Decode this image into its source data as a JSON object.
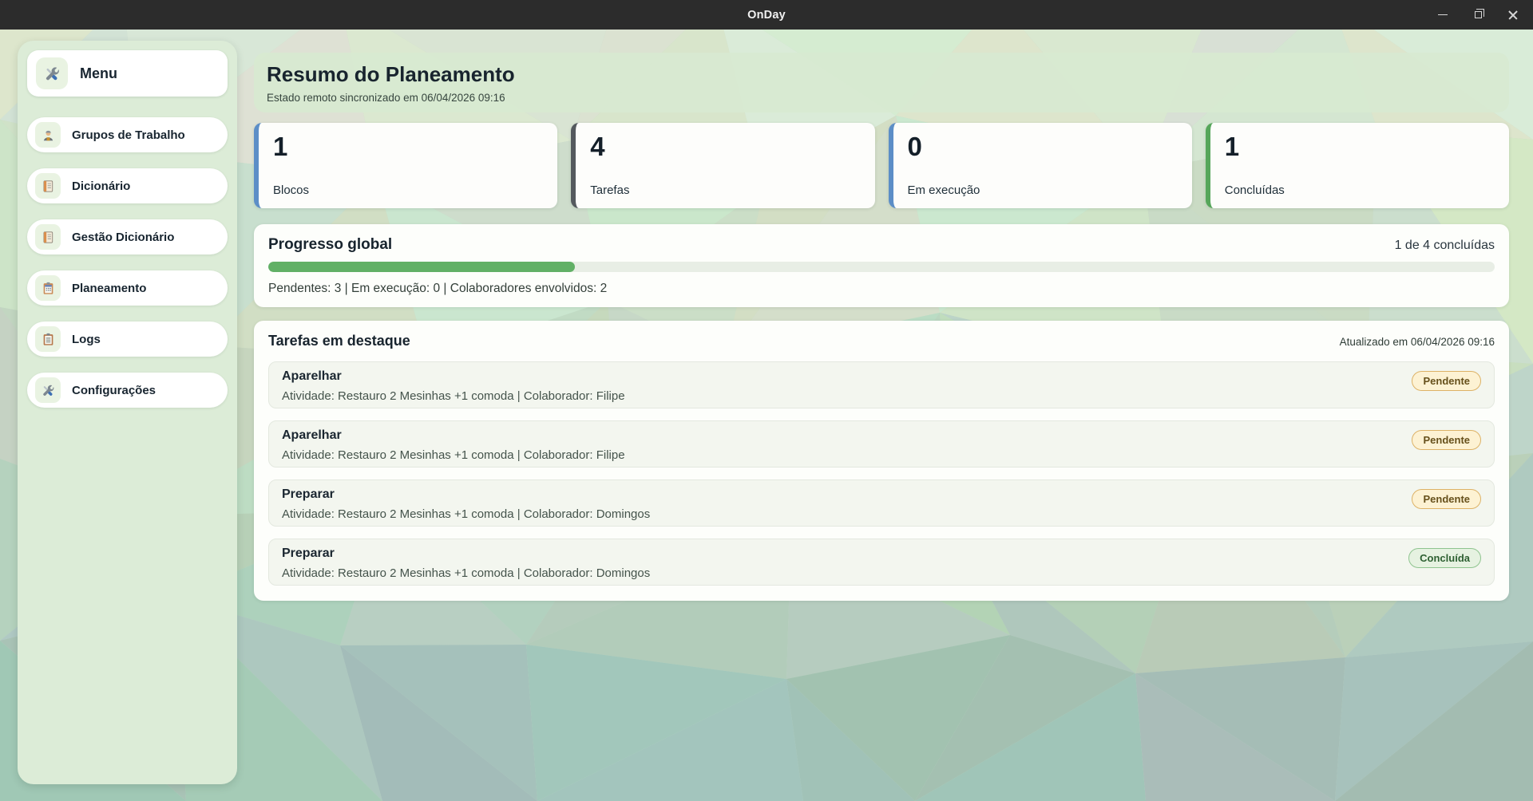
{
  "titlebar": {
    "title": "OnDay",
    "controls": [
      {
        "icon": "minimize-icon"
      },
      {
        "icon": "restore-icon"
      },
      {
        "icon": "close-icon"
      }
    ]
  },
  "sidebar": {
    "header": {
      "label": "Menu",
      "icon": "tools-icon"
    },
    "items": [
      {
        "label": "Grupos de Trabalho",
        "icon": "worker-icon"
      },
      {
        "label": "Dicionário",
        "icon": "notebook-icon"
      },
      {
        "label": "Gestão Dicionário",
        "icon": "notebook-icon"
      },
      {
        "label": "Planeamento",
        "icon": "planner-clipboard-icon"
      },
      {
        "label": "Logs",
        "icon": "clipboard-icon"
      },
      {
        "label": "Configurações",
        "icon": "tools-icon"
      }
    ]
  },
  "main": {
    "header": {
      "title": "Resumo do Planeamento",
      "subtitle": "Estado remoto sincronizado em 06/04/2026 09:16"
    },
    "stats": [
      {
        "value": "1",
        "label": "Blocos",
        "accent": "#5c8ec7"
      },
      {
        "value": "4",
        "label": "Tarefas",
        "accent": "#54595e"
      },
      {
        "value": "0",
        "label": "Em execução",
        "accent": "#5c8ec7"
      },
      {
        "value": "1",
        "label": "Concluídas",
        "accent": "#56a65a"
      }
    ],
    "progress": {
      "title": "Progresso global",
      "summary": "1 de 4 concluídas",
      "fill_width": "25%",
      "bar_color": "#61b066",
      "track_color": "#e8eee5",
      "details": "Pendentes: 3 | Em execução: 0 | Colaboradores envolvidos: 2"
    },
    "tasks": {
      "title": "Tarefas em destaque",
      "updated": "Atualizado em 06/04/2026 09:16",
      "items": [
        {
          "name": "Aparelhar",
          "details": "Atividade: Restauro 2 Mesinhas +1 comoda | Colaborador: Filipe",
          "status": "Pendente",
          "status_type": "pending"
        },
        {
          "name": "Aparelhar",
          "details": "Atividade: Restauro 2 Mesinhas +1 comoda | Colaborador: Filipe",
          "status": "Pendente",
          "status_type": "pending"
        },
        {
          "name": "Preparar",
          "details": "Atividade: Restauro 2 Mesinhas +1 comoda | Colaborador: Domingos",
          "status": "Pendente",
          "status_type": "pending"
        },
        {
          "name": "Preparar",
          "details": "Atividade: Restauro 2 Mesinhas +1 comoda | Colaborador: Domingos",
          "status": "Concluída",
          "status_type": "done"
        }
      ]
    }
  },
  "theme": {
    "titlebar_bg": "#2c2c2c",
    "sidebar_bg": "#dcecd7",
    "header_panel_bg": "#d7e9d1",
    "panel_bg": "#fdfefb",
    "badge_pending_bg": "#fdf2d3",
    "badge_pending_border": "#ddb266",
    "badge_done_bg": "#e6f2e1",
    "badge_done_border": "#8fc48f",
    "bg_top": "#dbe9d5",
    "bg_bottom": "#a0bdb5"
  }
}
